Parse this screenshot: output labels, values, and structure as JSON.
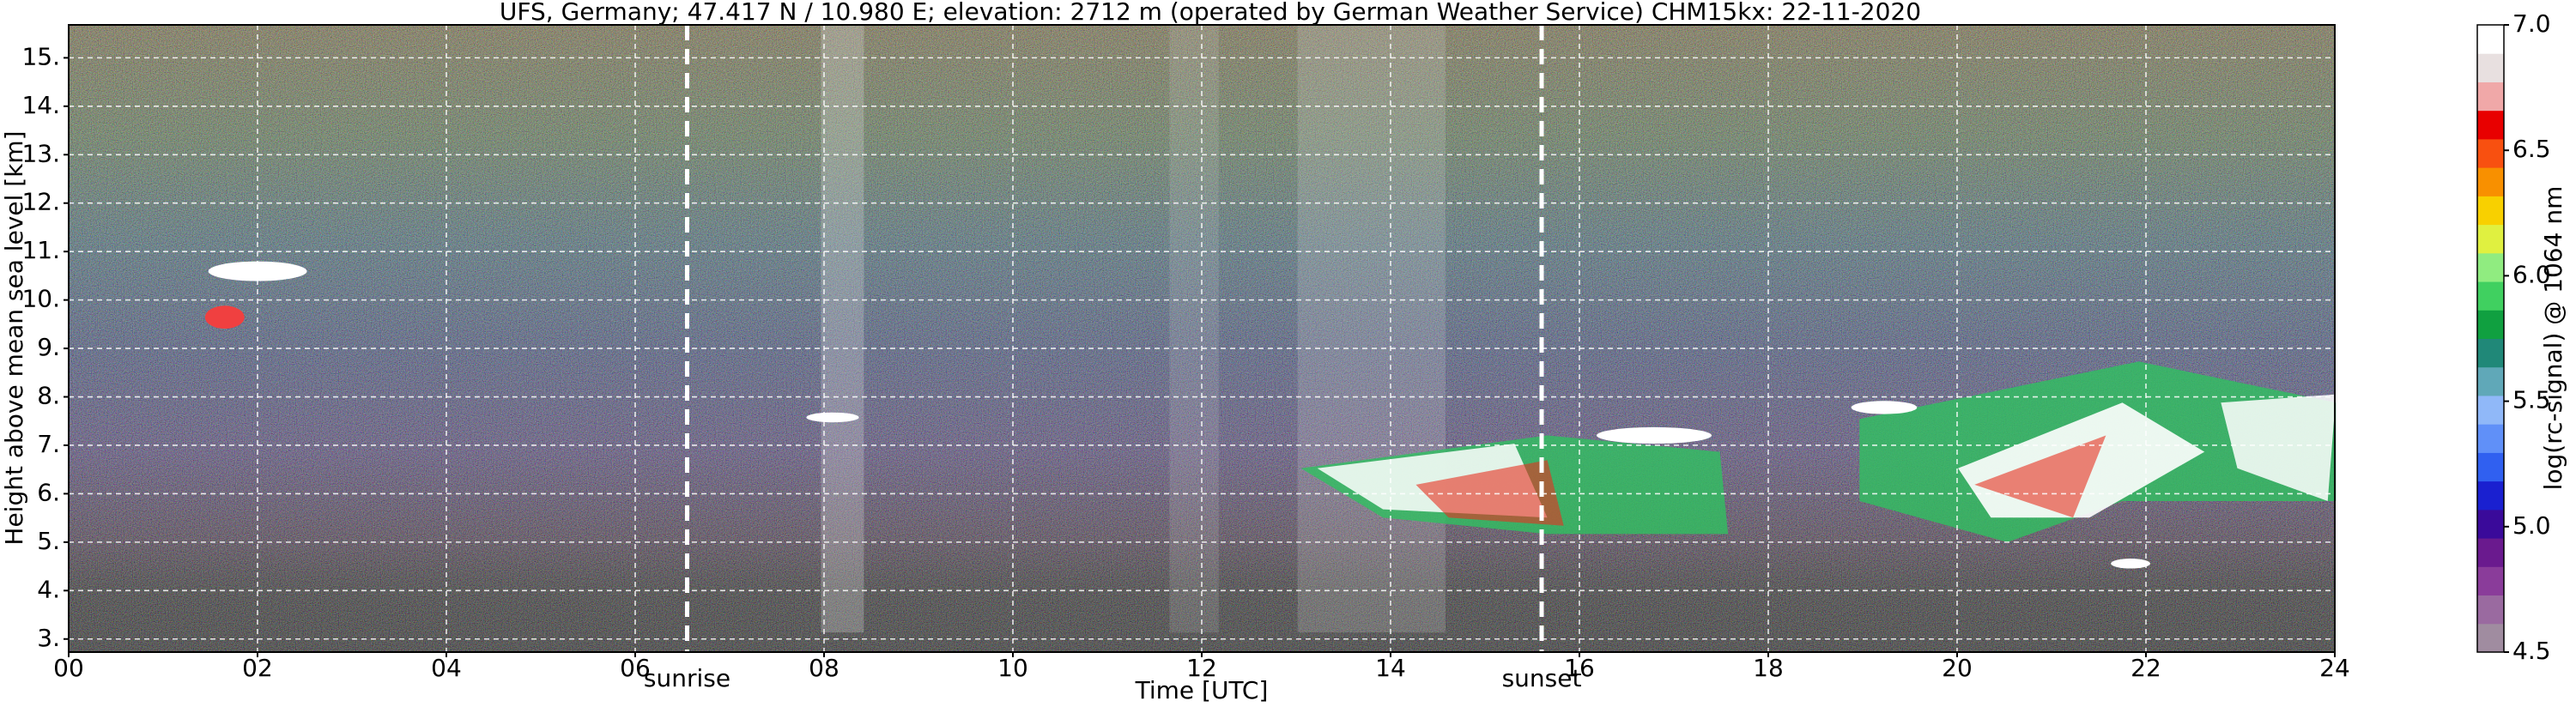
{
  "chart_data": {
    "type": "heatmap",
    "title": "UFS, Germany; 47.417 N / 10.980 E; elevation: 2712 m  (operated by German Weather Service)    CHM15kx: 22-11-2020",
    "xlabel": "Time [UTC]",
    "ylabel": "Height above mean sea level [km]",
    "xlim": [
      0,
      24
    ],
    "xticks": [
      {
        "value": 0,
        "label": "00"
      },
      {
        "value": 2,
        "label": "02"
      },
      {
        "value": 4,
        "label": "04"
      },
      {
        "value": 6,
        "label": "06"
      },
      {
        "value": 8,
        "label": "08"
      },
      10,
      12,
      14,
      16,
      18,
      20,
      22,
      24
    ],
    "ylim": [
      2.73,
      15.68
    ],
    "yticks": [
      {
        "value": 3,
        "label": "3."
      },
      {
        "value": 4,
        "label": "4."
      },
      {
        "value": 5,
        "label": "5."
      },
      {
        "value": 6,
        "label": "6."
      },
      {
        "value": 7,
        "label": "7."
      },
      {
        "value": 8,
        "label": "8."
      },
      {
        "value": 9,
        "label": "9."
      },
      {
        "value": 10,
        "label": "10."
      },
      {
        "value": 11,
        "label": "11."
      },
      {
        "value": 12,
        "label": "12."
      },
      {
        "value": 13,
        "label": "13."
      },
      {
        "value": 14,
        "label": "14."
      },
      {
        "value": 15,
        "label": "15."
      }
    ],
    "grid": true,
    "annotations": [
      {
        "text": "sunrise",
        "x": 6.55
      },
      {
        "text": "sunset",
        "x": 15.6
      }
    ],
    "colorbar": {
      "label": "log(rc-signal) @ 1064 nm",
      "lim": [
        4.5,
        7.0
      ],
      "ticks": [
        4.5,
        {
          "value": 5.0,
          "label": "5.0"
        },
        5.5,
        {
          "value": 6.0,
          "label": "6.0"
        },
        6.5,
        {
          "value": 7.0,
          "label": "7.0"
        }
      ],
      "colors": [
        "#a08ca0",
        "#9a6aa0",
        "#8a3c9a",
        "#6a1a8e",
        "#3a0a9a",
        "#1a20d0",
        "#3060f0",
        "#6090f8",
        "#90b8f8",
        "#60a8b8",
        "#208878",
        "#10a040",
        "#40d060",
        "#90ec80",
        "#e0f040",
        "#f8d000",
        "#f89000",
        "#f85010",
        "#e80000",
        "#f0a8a8",
        "#e8e0e0",
        "#ffffff"
      ]
    }
  }
}
